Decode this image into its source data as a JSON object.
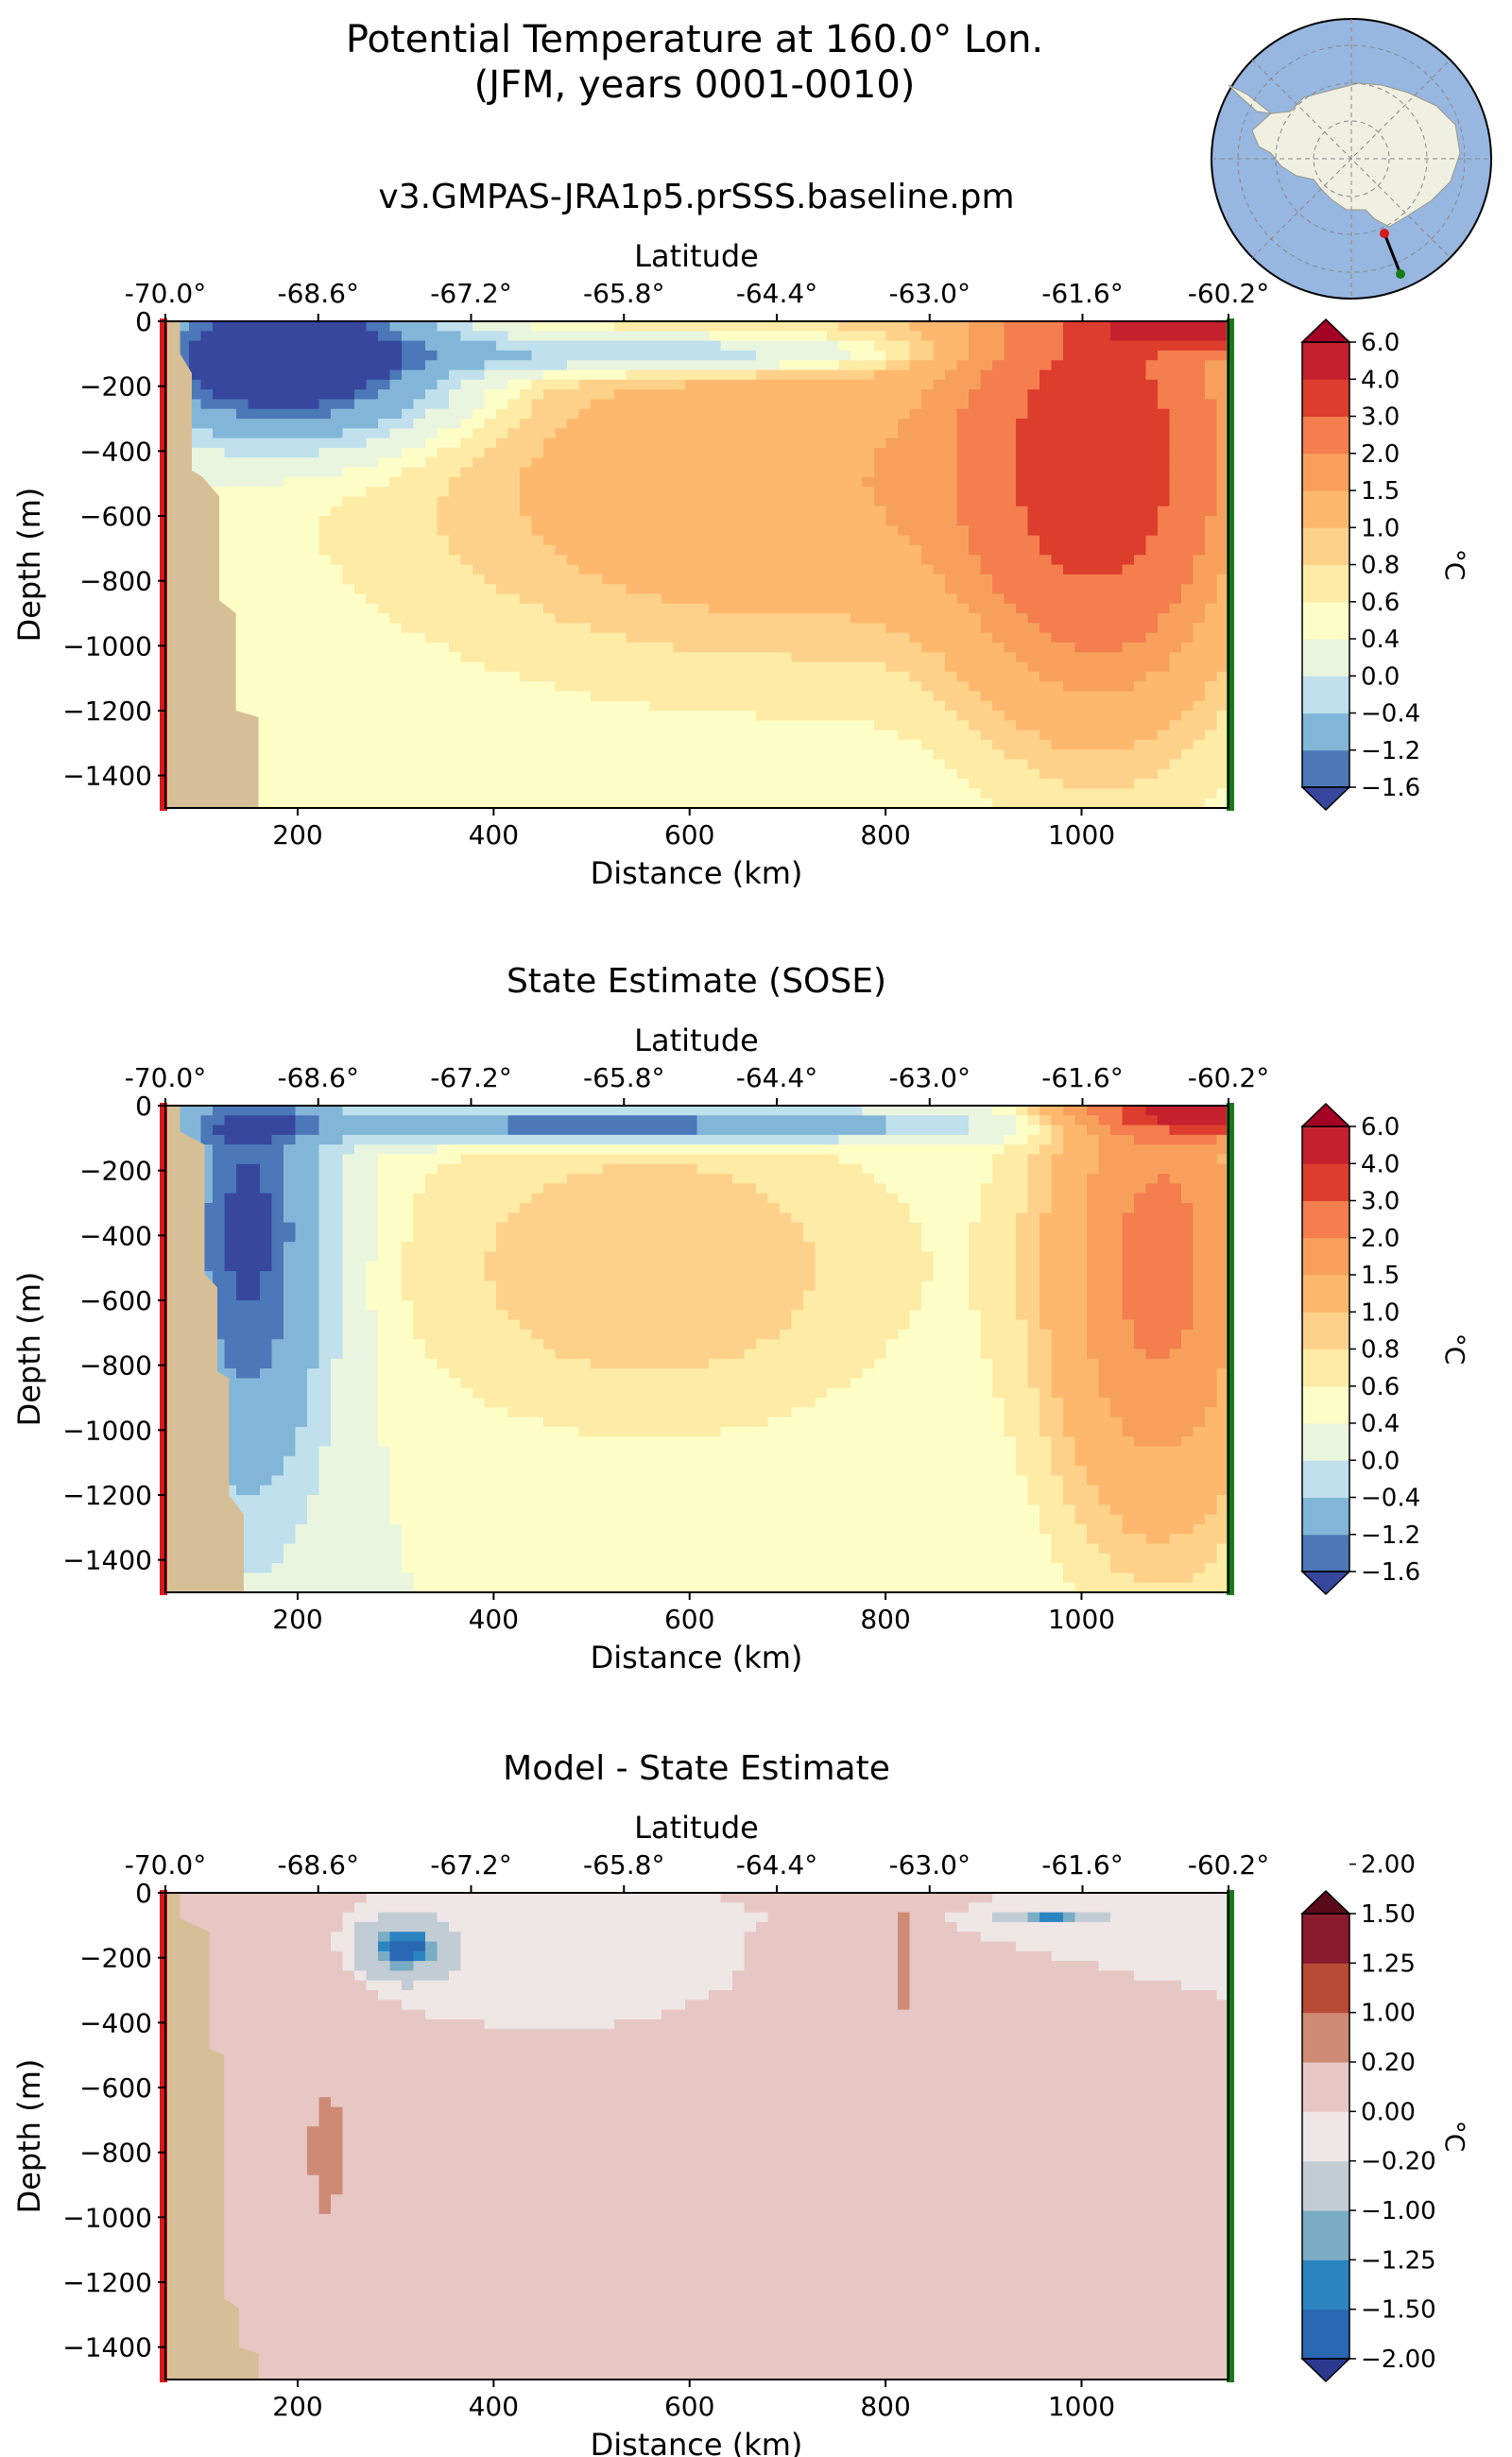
{
  "page": {
    "title_line1": "Potential Temperature at 160.0° Lon.",
    "title_line2": "(JFM, years 0001-0010)"
  },
  "colors": {
    "land": "#d6bf97",
    "transect_start_marker": "#d7191c",
    "transect_end_marker": "#1a7a1a",
    "ocean_map": "#97b6e0",
    "antarctica_map": "#efefe2"
  },
  "inset_map": {
    "projection": "south polar stereographic",
    "transect_start_marker_color": "red",
    "transect_end_marker_color": "green"
  },
  "chart_data": [
    {
      "type": "heatmap",
      "title": "v3.GMPAS-JRA1p5.prSSS.baseline.pm",
      "xlabel": "Distance (km)",
      "ylabel": "Depth (m)",
      "top_xlabel": "Latitude",
      "xlim": [
        65,
        1150
      ],
      "ylim": [
        -1500,
        0
      ],
      "xticks": [
        200,
        400,
        600,
        800,
        1000
      ],
      "xtick_labels": [
        "200",
        "400",
        "600",
        "800",
        "1000"
      ],
      "yticks": [
        0,
        -200,
        -400,
        -600,
        -800,
        -1000,
        -1200,
        -1400
      ],
      "ytick_labels": [
        "0",
        "−200",
        "−400",
        "−600",
        "−800",
        "−1000",
        "−1200",
        "−1400"
      ],
      "top_ticks": [
        65,
        221,
        377,
        533,
        689,
        845,
        1001,
        1150
      ],
      "top_tick_labels": [
        "-70.0°",
        "-68.6°",
        "-67.2°",
        "-65.8°",
        "-64.4°",
        "-63.0°",
        "-61.6°",
        "-60.2°"
      ],
      "colorbar": {
        "label": "°C",
        "levels": [
          "−1.6",
          "−1.2",
          "−0.4",
          "0.0",
          "0.4",
          "0.6",
          "0.8",
          "1.0",
          "1.5",
          "2.0",
          "3.0",
          "4.0",
          "6.0"
        ],
        "colors": [
          "#38479e",
          "#4a78b8",
          "#82b6d8",
          "#bfe0ec",
          "#eaf5e0",
          "#fdfdc6",
          "#fdeba6",
          "#fed18a",
          "#fdb86e",
          "#f7a05c",
          "#f47e4e",
          "#dd3d2d",
          "#c4202d",
          "#a50026"
        ]
      },
      "bathymetry": [
        [
          0,
          80
        ],
        [
          -100,
          80
        ],
        [
          -160,
          92
        ],
        [
          -460,
          92
        ],
        [
          -480,
          103
        ],
        [
          -540,
          120
        ],
        [
          -860,
          120
        ],
        [
          -900,
          137
        ],
        [
          -1200,
          137
        ],
        [
          -1220,
          160
        ],
        [
          -1500,
          160
        ]
      ],
      "fields": [
        {
          "x": 1020,
          "y": -400,
          "sx": 130,
          "sy": 700,
          "a": 3.0
        },
        {
          "x": 700,
          "y": -500,
          "sx": 360,
          "sy": 520,
          "a": 1.0
        },
        {
          "x": 1150,
          "y": -20,
          "sx": 110,
          "sy": 60,
          "a": 4.0
        },
        {
          "x": 190,
          "y": -120,
          "sx": 150,
          "sy": 220,
          "a": -3.4
        },
        {
          "x": 560,
          "y": -100,
          "sx": 260,
          "sy": 60,
          "a": -1.2
        }
      ],
      "base": 0.45
    },
    {
      "type": "heatmap",
      "title": "State Estimate (SOSE)",
      "xlabel": "Distance (km)",
      "ylabel": "Depth (m)",
      "top_xlabel": "Latitude",
      "xlim": [
        65,
        1150
      ],
      "ylim": [
        -1500,
        0
      ],
      "xticks": [
        200,
        400,
        600,
        800,
        1000
      ],
      "xtick_labels": [
        "200",
        "400",
        "600",
        "800",
        "1000"
      ],
      "yticks": [
        0,
        -200,
        -400,
        -600,
        -800,
        -1000,
        -1200,
        -1400
      ],
      "ytick_labels": [
        "0",
        "−200",
        "−400",
        "−600",
        "−800",
        "−1000",
        "−1200",
        "−1400"
      ],
      "top_ticks": [
        65,
        221,
        377,
        533,
        689,
        845,
        1001,
        1150
      ],
      "top_tick_labels": [
        "-70.0°",
        "-68.6°",
        "-67.2°",
        "-65.8°",
        "-64.4°",
        "-63.0°",
        "-61.6°",
        "-60.2°"
      ],
      "colorbar": {
        "label": "°C",
        "levels": [
          "−1.6",
          "−1.2",
          "−0.4",
          "0.0",
          "0.4",
          "0.6",
          "0.8",
          "1.0",
          "1.5",
          "2.0",
          "3.0",
          "4.0",
          "6.0"
        ],
        "colors": [
          "#38479e",
          "#4a78b8",
          "#82b6d8",
          "#bfe0ec",
          "#eaf5e0",
          "#fdfdc6",
          "#fdeba6",
          "#fed18a",
          "#fdb86e",
          "#f7a05c",
          "#f47e4e",
          "#dd3d2d",
          "#c4202d",
          "#a50026"
        ]
      },
      "bathymetry": [
        [
          0,
          80
        ],
        [
          -80,
          80
        ],
        [
          -120,
          105
        ],
        [
          -520,
          105
        ],
        [
          -560,
          118
        ],
        [
          -820,
          118
        ],
        [
          -840,
          130
        ],
        [
          -1200,
          130
        ],
        [
          -1260,
          145
        ],
        [
          -1500,
          145
        ]
      ],
      "fields": [
        {
          "x": 1080,
          "y": -500,
          "sx": 110,
          "sy": 800,
          "a": 1.8
        },
        {
          "x": 560,
          "y": -500,
          "sx": 260,
          "sy": 500,
          "a": 0.6
        },
        {
          "x": 1150,
          "y": -20,
          "sx": 120,
          "sy": 60,
          "a": 4.0
        },
        {
          "x": 150,
          "y": -400,
          "sx": 80,
          "sy": 800,
          "a": -2.2
        },
        {
          "x": 520,
          "y": -60,
          "sx": 320,
          "sy": 50,
          "a": -2.2
        }
      ],
      "base": 0.4
    },
    {
      "type": "heatmap",
      "title": "Model - State Estimate",
      "xlabel": "Distance (km)",
      "ylabel": "Depth (m)",
      "top_xlabel": "Latitude",
      "xlim": [
        65,
        1150
      ],
      "ylim": [
        -1500,
        0
      ],
      "xticks": [
        200,
        400,
        600,
        800,
        1000
      ],
      "xtick_labels": [
        "200",
        "400",
        "600",
        "800",
        "1000"
      ],
      "yticks": [
        0,
        -200,
        -400,
        -600,
        -800,
        -1000,
        -1200,
        -1400
      ],
      "ytick_labels": [
        "0",
        "−200",
        "−400",
        "−600",
        "−800",
        "−1000",
        "−1200",
        "−1400"
      ],
      "top_ticks": [
        65,
        221,
        377,
        533,
        689,
        845,
        1001,
        1150
      ],
      "top_tick_labels": [
        "-70.0°",
        "-68.6°",
        "-67.2°",
        "-65.8°",
        "-64.4°",
        "-63.0°",
        "-61.6°",
        "-60.2°"
      ],
      "colorbar": {
        "label": "°C",
        "levels": [
          "−2.00",
          "−1.50",
          "−1.25",
          "−1.00",
          "−0.20",
          "0.00",
          "0.20",
          "1.00",
          "1.25",
          "1.50",
          "2.00"
        ],
        "colors": [
          "#2b3a8f",
          "#2a67b3",
          "#2b84c0",
          "#79acc5",
          "#c2ccd4",
          "#efe6e6",
          "#e6c7c4",
          "#cf8a75",
          "#b94a35",
          "#8a1a2e",
          "#5b0a1c"
        ]
      },
      "bathymetry": [
        [
          0,
          80
        ],
        [
          -80,
          80
        ],
        [
          -120,
          110
        ],
        [
          -480,
          110
        ],
        [
          -500,
          125
        ],
        [
          -1250,
          125
        ],
        [
          -1280,
          140
        ],
        [
          -1400,
          140
        ],
        [
          -1420,
          160
        ],
        [
          -1500,
          160
        ]
      ],
      "fields": [
        {
          "x": 310,
          "y": -170,
          "sx": 40,
          "sy": 80,
          "a": -1.8
        },
        {
          "x": 970,
          "y": -80,
          "sx": 40,
          "sy": 15,
          "a": -1.5
        },
        {
          "x": 230,
          "y": -800,
          "sx": 50,
          "sy": 600,
          "a": 0.22
        },
        {
          "x": 820,
          "y": -200,
          "sx": 20,
          "sy": 500,
          "a": 0.22
        }
      ],
      "base": 0.0
    }
  ]
}
